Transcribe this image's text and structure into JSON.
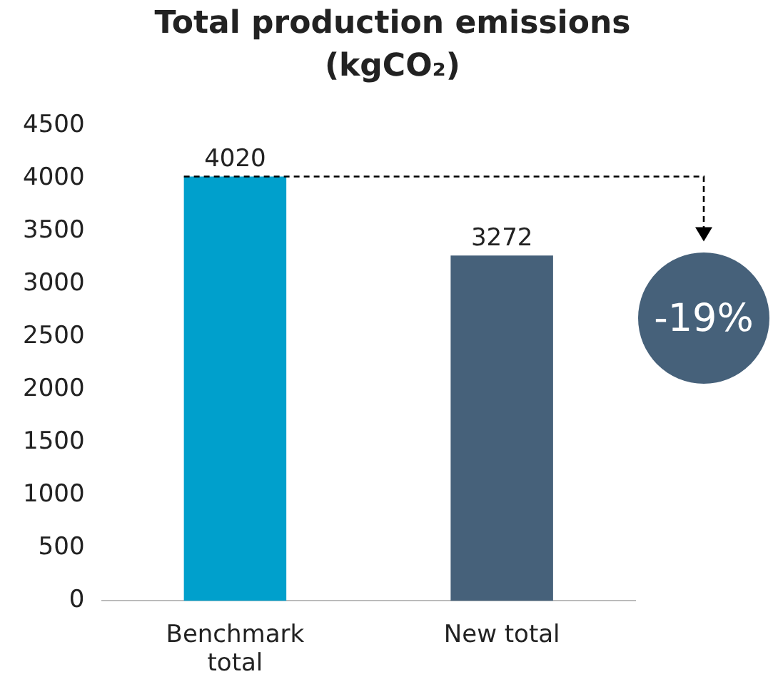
{
  "chart_data": {
    "type": "bar",
    "title": "Total production emissions (kgCO₂)",
    "categories": [
      "Benchmark total",
      "New total"
    ],
    "values": [
      4020,
      3272
    ],
    "colors": [
      "#00a0cc",
      "#46617a"
    ],
    "ylim": [
      0,
      4500
    ],
    "yticks": [
      0,
      500,
      1000,
      1500,
      2000,
      2500,
      3000,
      3500,
      4000,
      4500
    ],
    "grid": false,
    "legend": false,
    "data_labels": true,
    "annotations": [
      "-19%"
    ]
  }
}
